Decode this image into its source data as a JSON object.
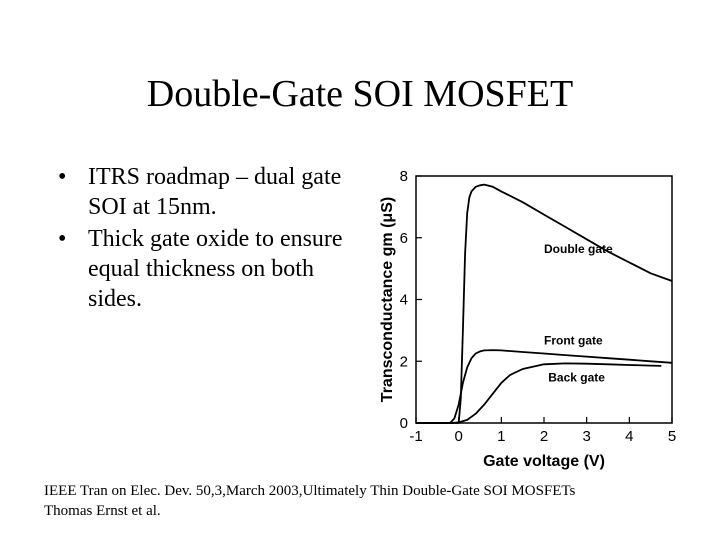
{
  "slide": {
    "title": "Double-Gate SOI MOSFET",
    "bullets": [
      "ITRS roadmap – dual gate SOI at 15nm.",
      "Thick gate oxide to ensure equal thickness on both sides."
    ],
    "citation_line1": "IEEE Tran on Elec. Dev. 50,3,March 2003,Ultimately Thin Double-Gate SOI MOSFETs",
    "citation_line2": "Thomas Ernst et al."
  },
  "chart_data": {
    "type": "line",
    "title": "",
    "xlabel": "Gate voltage (V)",
    "ylabel": "Transconductance gm (μS)",
    "xlim": [
      -1,
      5
    ],
    "ylim": [
      0,
      8
    ],
    "xticks": [
      -1,
      0,
      1,
      2,
      3,
      4,
      5
    ],
    "yticks": [
      0,
      2,
      4,
      6,
      8
    ],
    "grid": false,
    "series": [
      {
        "name": "Double gate",
        "x": [
          -1,
          0,
          0.05,
          0.1,
          0.15,
          0.2,
          0.25,
          0.3,
          0.4,
          0.5,
          0.6,
          0.8,
          1,
          1.5,
          2,
          2.5,
          3,
          3.5,
          4,
          4.5,
          5
        ],
        "y": [
          0,
          0,
          0.8,
          3.0,
          5.5,
          6.8,
          7.3,
          7.5,
          7.65,
          7.7,
          7.72,
          7.65,
          7.5,
          7.15,
          6.75,
          6.35,
          5.95,
          5.55,
          5.2,
          4.85,
          4.6
        ]
      },
      {
        "name": "Front gate",
        "x": [
          -1,
          -0.2,
          -0.1,
          0,
          0.1,
          0.2,
          0.3,
          0.4,
          0.5,
          0.6,
          0.8,
          1,
          1.5,
          2,
          2.5,
          3,
          3.5,
          4,
          4.5,
          5
        ],
        "y": [
          0,
          0,
          0.15,
          0.6,
          1.3,
          1.8,
          2.1,
          2.25,
          2.32,
          2.35,
          2.36,
          2.35,
          2.3,
          2.25,
          2.2,
          2.15,
          2.1,
          2.05,
          2.0,
          1.95
        ]
      },
      {
        "name": "Back gate",
        "x": [
          -1,
          -0.2,
          0,
          0.2,
          0.4,
          0.6,
          0.8,
          1,
          1.2,
          1.5,
          2,
          2.5,
          3,
          3.5,
          4,
          4.5,
          4.75
        ],
        "y": [
          0,
          0,
          0.02,
          0.1,
          0.3,
          0.6,
          0.95,
          1.3,
          1.55,
          1.75,
          1.9,
          1.93,
          1.92,
          1.9,
          1.88,
          1.86,
          1.85
        ]
      }
    ]
  }
}
